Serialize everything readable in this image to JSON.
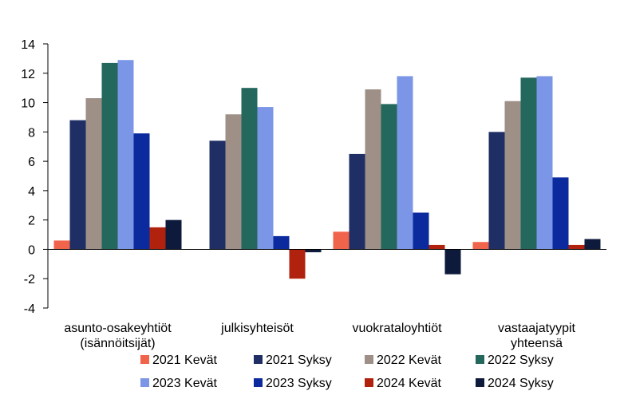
{
  "chart_data": {
    "type": "bar",
    "title": "",
    "xlabel": "",
    "ylabel": "",
    "ylim": [
      -4,
      14
    ],
    "yticks": [
      -4,
      -2,
      0,
      2,
      4,
      6,
      8,
      10,
      12,
      14
    ],
    "grid": false,
    "legend_position": "bottom",
    "categories": [
      [
        "asunto-osakeyhtiöt",
        "(isännöitsijät)"
      ],
      [
        "julkisyhteisöt"
      ],
      [
        "vuokrataloyhtiöt"
      ],
      [
        "vastaajatyypit",
        "yhteensä"
      ]
    ],
    "series": [
      {
        "name": "2021 Kevät",
        "color": "#f0644b",
        "values": [
          0.6,
          0.0,
          1.2,
          0.5
        ]
      },
      {
        "name": "2021 Syksy",
        "color": "#1f2f66",
        "values": [
          8.8,
          7.4,
          6.5,
          8.0
        ]
      },
      {
        "name": "2022 Kevät",
        "color": "#9e8f87",
        "values": [
          10.3,
          9.2,
          10.9,
          10.1
        ]
      },
      {
        "name": "2022 Syksy",
        "color": "#24675c",
        "values": [
          12.7,
          11.0,
          9.9,
          11.7
        ]
      },
      {
        "name": "2023 Kevät",
        "color": "#7b96e6",
        "values": [
          12.9,
          9.7,
          11.8,
          11.8
        ]
      },
      {
        "name": "2023 Syksy",
        "color": "#0b2a9e",
        "values": [
          7.9,
          0.9,
          2.5,
          4.9
        ]
      },
      {
        "name": "2024 Kevät",
        "color": "#b0220d",
        "values": [
          1.5,
          -2.0,
          0.3,
          0.3
        ]
      },
      {
        "name": "2024 Syksy",
        "color": "#0d1a3b",
        "values": [
          2.0,
          -0.2,
          -1.7,
          0.7
        ]
      }
    ]
  }
}
